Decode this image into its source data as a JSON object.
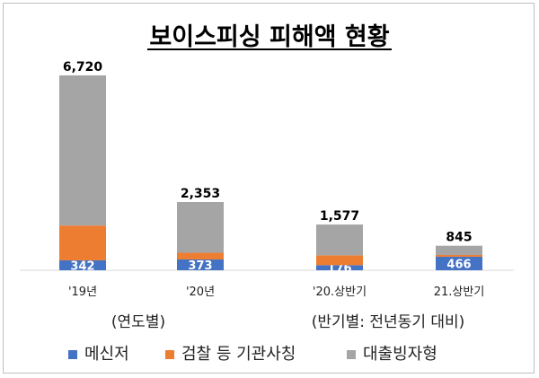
{
  "chart_data": [
    {
      "type": "bar",
      "stacked": true,
      "title": "보이스피싱 피해액 현황",
      "group_label": "(연도별)",
      "categories": [
        "'19년",
        "'20년"
      ],
      "series": [
        {
          "name": "메신저",
          "color": "#4472c4",
          "values": [
            342,
            373
          ]
        },
        {
          "name": "검찰 등 기관사칭",
          "color": "#ed7d31",
          "values": [
            1200,
            230
          ]
        },
        {
          "name": "대출빙자형",
          "color": "#a5a5a5",
          "values": [
            5178,
            1750
          ]
        }
      ],
      "segment_labels": [
        [
          "342",
          "373"
        ],
        [
          "",
          ""
        ],
        [
          "",
          ""
        ]
      ],
      "totals": [
        "6,720",
        "2,353"
      ],
      "ylim": [
        0,
        7000
      ]
    },
    {
      "type": "bar",
      "stacked": true,
      "group_label": "(반기별: 전년동기 대비)",
      "categories": [
        "'20.상반기",
        "21.상반기"
      ],
      "series": [
        {
          "name": "메신저",
          "color": "#4472c4",
          "values": [
            176,
            466
          ]
        },
        {
          "name": "검찰 등 기관사칭",
          "color": "#ed7d31",
          "values": [
            340,
            60
          ]
        },
        {
          "name": "대출빙자형",
          "color": "#a5a5a5",
          "values": [
            1061,
            319
          ]
        }
      ],
      "segment_labels": [
        [
          "176",
          "466"
        ],
        [
          "",
          ""
        ],
        [
          "",
          ""
        ]
      ],
      "totals": [
        "1,577",
        "845"
      ],
      "ylim": [
        0,
        7000
      ]
    }
  ],
  "legend": [
    {
      "label": "메신저",
      "color": "#4472c4"
    },
    {
      "label": "검찰 등 기관사칭",
      "color": "#ed7d31"
    },
    {
      "label": "대출빙자형",
      "color": "#a5a5a5"
    }
  ]
}
